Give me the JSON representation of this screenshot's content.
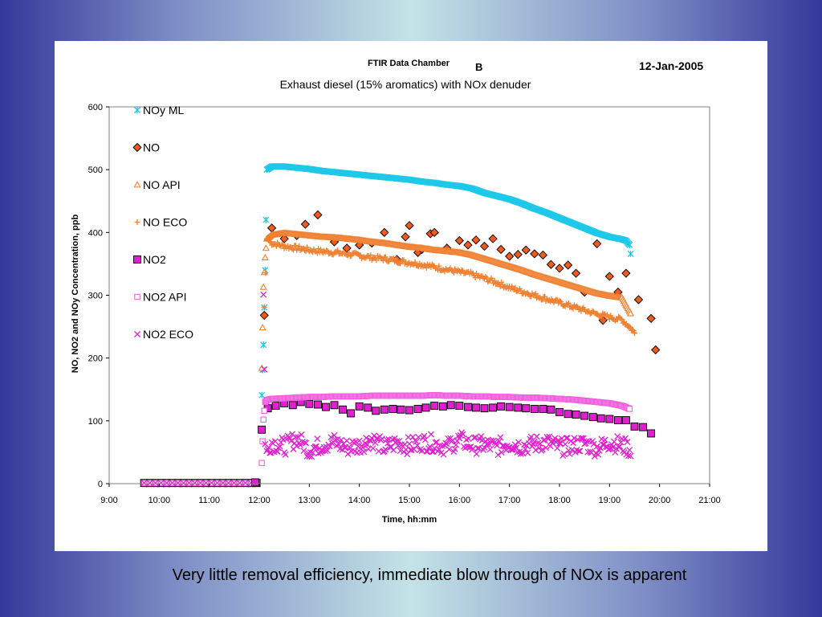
{
  "slide": {
    "caption": "Very little removal efficiency, immediate blow through of NOx is apparent"
  },
  "chart_data": {
    "type": "scatter",
    "header_left": "FTIR Data Chamber",
    "header_mid": "B",
    "header_date": "12-Jan-2005",
    "title": "Exhaust diesel (15% aromatics) with NOx denuder",
    "xlabel": "Time, hh:mm",
    "ylabel": "NO, NO2 and NOy Concentration, ppb",
    "xlim": [
      9.0,
      21.0
    ],
    "ylim": [
      0,
      600
    ],
    "x_ticks": [
      "9:00",
      "10:00",
      "11:00",
      "12:00",
      "13:00",
      "14:00",
      "15:00",
      "16:00",
      "17:00",
      "18:00",
      "19:00",
      "20:00",
      "21:00"
    ],
    "y_ticks": [
      "0",
      "100",
      "200",
      "300",
      "400",
      "500",
      "600"
    ],
    "legend_position": "top-left",
    "grid": false,
    "series": [
      {
        "name": "NOy ML",
        "marker": "asterisk",
        "color": "#1ec8e8",
        "x": [
          12.05,
          12.083,
          12.117,
          12.15,
          12.25,
          12.5,
          12.75,
          13.0,
          13.25,
          13.5,
          13.75,
          14.0,
          14.25,
          14.5,
          14.75,
          15.0,
          15.25,
          15.5,
          15.75,
          16.0,
          16.25,
          16.5,
          16.75,
          17.0,
          17.25,
          17.5,
          17.75,
          18.0,
          18.25,
          18.5,
          18.75,
          19.0,
          19.25,
          19.33,
          19.4,
          19.42
        ],
        "y": [
          141,
          221,
          340,
          500,
          505,
          505,
          503,
          501,
          498,
          496,
          494,
          492,
          490,
          488,
          486,
          484,
          481,
          479,
          476,
          474,
          470,
          463,
          458,
          453,
          446,
          438,
          431,
          423,
          415,
          407,
          399,
          393,
          389,
          387,
          380,
          366
        ]
      },
      {
        "name": "NO",
        "marker": "diamond",
        "color": "#f05a1a",
        "x": [
          12.1,
          12.25,
          12.5,
          12.75,
          12.92,
          13.17,
          13.5,
          13.75,
          14.0,
          14.25,
          14.5,
          14.75,
          14.92,
          15.0,
          15.17,
          15.25,
          15.42,
          15.5,
          15.75,
          16.0,
          16.17,
          16.33,
          16.5,
          16.67,
          16.83,
          17.0,
          17.17,
          17.33,
          17.5,
          17.67,
          17.83,
          18.0,
          18.17,
          18.33,
          18.5,
          18.75,
          18.87,
          19.0,
          19.17,
          19.33,
          19.58,
          19.83,
          19.92
        ],
        "y": [
          268,
          407,
          390,
          395,
          413,
          428,
          385,
          375,
          380,
          383,
          400,
          357,
          393,
          411,
          368,
          373,
          398,
          400,
          375,
          387,
          380,
          388,
          378,
          390,
          373,
          362,
          365,
          372,
          366,
          364,
          349,
          343,
          348,
          335,
          305,
          382,
          260,
          330,
          305,
          335,
          293,
          263,
          213
        ]
      },
      {
        "name": "NO API",
        "marker": "triangle",
        "color": "#f08030",
        "x": [
          12.05,
          12.083,
          12.117,
          12.15,
          12.25,
          12.5,
          12.75,
          13.0,
          13.25,
          13.5,
          13.75,
          14.0,
          14.25,
          14.5,
          14.75,
          15.0,
          15.25,
          15.5,
          15.75,
          16.0,
          16.25,
          16.5,
          16.75,
          17.0,
          17.25,
          17.5,
          17.75,
          18.0,
          18.25,
          18.5,
          18.75,
          19.0,
          19.25,
          19.42
        ],
        "y": [
          184,
          313,
          360,
          390,
          396,
          399,
          397,
          395,
          393,
          392,
          390,
          388,
          385,
          383,
          380,
          377,
          375,
          372,
          370,
          368,
          364,
          358,
          352,
          346,
          340,
          333,
          327,
          321,
          315,
          309,
          303,
          299,
          296,
          271
        ]
      },
      {
        "name": "NO ECO",
        "marker": "plus",
        "color": "#f08030",
        "x": [
          12.1,
          12.15,
          12.25,
          12.5,
          12.75,
          13.0,
          13.25,
          13.5,
          13.75,
          14.0,
          14.25,
          14.5,
          14.75,
          15.0,
          15.25,
          15.5,
          15.75,
          16.0,
          16.25,
          16.5,
          16.75,
          17.0,
          17.25,
          17.5,
          17.75,
          18.0,
          18.25,
          18.5,
          18.75,
          19.0,
          19.25,
          19.42,
          19.5
        ],
        "y": [
          281,
          390,
          383,
          378,
          375,
          372,
          370,
          368,
          366,
          363,
          360,
          358,
          355,
          352,
          349,
          345,
          341,
          337,
          333,
          327,
          320,
          312,
          306,
          300,
          294,
          288,
          282,
          276,
          270,
          265,
          261,
          248,
          240
        ]
      },
      {
        "name": "NO2",
        "marker": "square",
        "color": "#e020d0",
        "x": [
          11.92,
          12.05,
          12.17,
          12.33,
          12.5,
          12.67,
          12.83,
          13.0,
          13.17,
          13.33,
          13.5,
          13.67,
          13.83,
          14.0,
          14.17,
          14.33,
          14.5,
          14.67,
          14.83,
          15.0,
          15.17,
          15.33,
          15.5,
          15.67,
          15.83,
          16.0,
          16.17,
          16.33,
          16.5,
          16.67,
          16.83,
          17.0,
          17.17,
          17.33,
          17.5,
          17.67,
          17.83,
          18.0,
          18.17,
          18.33,
          18.5,
          18.67,
          18.83,
          19.0,
          19.17,
          19.33,
          19.5,
          19.67,
          19.83
        ],
        "y": [
          2,
          86,
          120,
          124,
          128,
          125,
          130,
          127,
          126,
          122,
          125,
          118,
          112,
          123,
          121,
          116,
          118,
          119,
          118,
          117,
          119,
          121,
          124,
          123,
          125,
          124,
          122,
          121,
          120,
          121,
          123,
          122,
          121,
          120,
          119,
          119,
          118,
          114,
          111,
          110,
          108,
          106,
          104,
          103,
          101,
          101,
          91,
          90,
          80
        ]
      },
      {
        "name": "NO2 API",
        "marker": "open-square",
        "color": "#f060e0",
        "x": [
          12.05,
          12.083,
          12.117,
          12.15,
          12.25,
          12.5,
          12.75,
          13.0,
          13.25,
          13.5,
          13.75,
          14.0,
          14.25,
          14.5,
          14.75,
          15.0,
          15.25,
          15.5,
          15.75,
          16.0,
          16.25,
          16.5,
          16.75,
          17.0,
          17.25,
          17.5,
          17.75,
          18.0,
          18.25,
          18.5,
          18.75,
          19.0,
          19.25,
          19.4
        ],
        "y": [
          33,
          102,
          130,
          133,
          135,
          136,
          137,
          138,
          138,
          139,
          139,
          139,
          140,
          140,
          140,
          140,
          140,
          141,
          140,
          140,
          139,
          139,
          138,
          138,
          137,
          137,
          136,
          135,
          134,
          132,
          130,
          128,
          124,
          119
        ]
      },
      {
        "name": "NO2 ECO",
        "marker": "x",
        "color": "#e020d0",
        "x": [
          12.083,
          12.117,
          12.15,
          12.25,
          12.5,
          12.75,
          13.0,
          13.25,
          13.5,
          13.75,
          14.0,
          14.25,
          14.5,
          14.75,
          15.0,
          15.25,
          15.5,
          15.75,
          16.0,
          16.25,
          16.5,
          16.75,
          17.0,
          17.25,
          17.5,
          17.75,
          18.0,
          18.25,
          18.5,
          18.75,
          19.0,
          19.25,
          19.42
        ],
        "y": [
          301,
          63,
          52,
          66,
          59,
          72,
          54,
          62,
          66,
          58,
          61,
          71,
          57,
          65,
          60,
          66,
          64,
          58,
          70,
          61,
          62,
          58,
          65,
          59,
          63,
          66,
          58,
          60,
          64,
          56,
          66,
          61,
          55
        ]
      }
    ],
    "baseline": {
      "x_start": 9.7,
      "x_end": 12.0,
      "value": 1,
      "series": [
        "NO2",
        "NO2 API",
        "NO2 ECO"
      ]
    }
  }
}
